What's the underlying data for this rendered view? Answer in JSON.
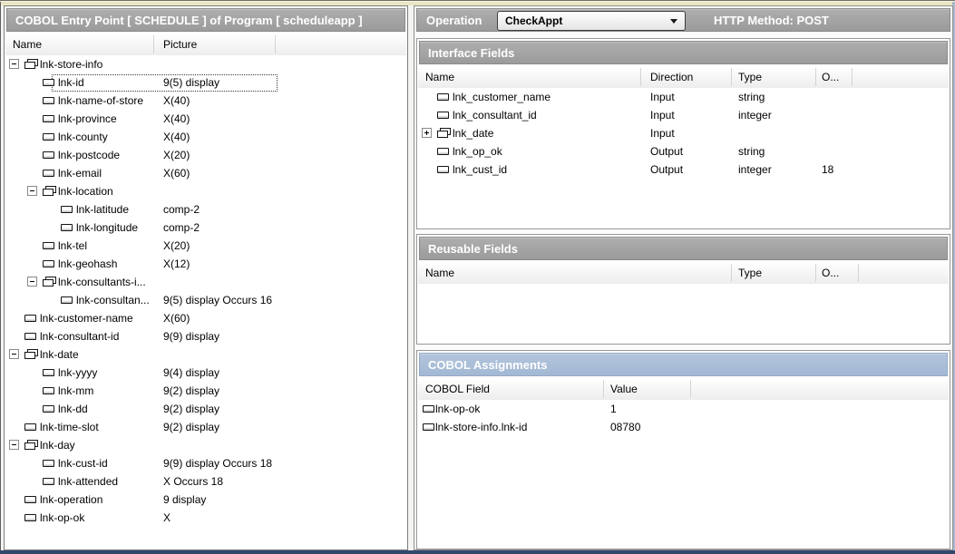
{
  "colors": {
    "bar_gray": "#a2a2a2",
    "bar_blue": "#a9bdd8",
    "top_strip": "#e9e6c3",
    "bottom_line": "#31496b"
  },
  "left_panel": {
    "title": "COBOL Entry Point [ SCHEDULE ] of Program [ scheduleapp ]",
    "columns": {
      "name": "Name",
      "picture": "Picture"
    },
    "rows": [
      {
        "name": "lnk-store-info",
        "picture": "",
        "level": 0,
        "kind": "group",
        "expander": "-"
      },
      {
        "name": "lnk-id",
        "picture": "9(5) display",
        "level": 1,
        "kind": "leaf",
        "selected": true
      },
      {
        "name": "lnk-name-of-store",
        "picture": "X(40)",
        "level": 1,
        "kind": "leaf"
      },
      {
        "name": "lnk-province",
        "picture": "X(40)",
        "level": 1,
        "kind": "leaf"
      },
      {
        "name": "lnk-county",
        "picture": "X(40)",
        "level": 1,
        "kind": "leaf"
      },
      {
        "name": "lnk-postcode",
        "picture": "X(20)",
        "level": 1,
        "kind": "leaf"
      },
      {
        "name": "lnk-email",
        "picture": "X(60)",
        "level": 1,
        "kind": "leaf"
      },
      {
        "name": "lnk-location",
        "picture": "",
        "level": 1,
        "kind": "group",
        "expander": "-"
      },
      {
        "name": "lnk-latitude",
        "picture": "comp-2",
        "level": 2,
        "kind": "leaf"
      },
      {
        "name": "lnk-longitude",
        "picture": "comp-2",
        "level": 2,
        "kind": "leaf"
      },
      {
        "name": "lnk-tel",
        "picture": "X(20)",
        "level": 1,
        "kind": "leaf"
      },
      {
        "name": "lnk-geohash",
        "picture": "X(12)",
        "level": 1,
        "kind": "leaf"
      },
      {
        "name": "lnk-consultants-i...",
        "picture": "",
        "level": 1,
        "kind": "group",
        "expander": "-"
      },
      {
        "name": "lnk-consultan...",
        "picture": "9(5) display Occurs 16",
        "level": 2,
        "kind": "leaf"
      },
      {
        "name": "lnk-customer-name",
        "picture": "X(60)",
        "level": 0,
        "kind": "leaf"
      },
      {
        "name": "lnk-consultant-id",
        "picture": "9(9) display",
        "level": 0,
        "kind": "leaf"
      },
      {
        "name": "lnk-date",
        "picture": "",
        "level": 0,
        "kind": "group",
        "expander": "-"
      },
      {
        "name": "lnk-yyyy",
        "picture": "9(4) display",
        "level": 1,
        "kind": "leaf"
      },
      {
        "name": "lnk-mm",
        "picture": "9(2) display",
        "level": 1,
        "kind": "leaf"
      },
      {
        "name": "lnk-dd",
        "picture": "9(2) display",
        "level": 1,
        "kind": "leaf"
      },
      {
        "name": "lnk-time-slot",
        "picture": "9(2) display",
        "level": 0,
        "kind": "leaf"
      },
      {
        "name": "lnk-day",
        "picture": "",
        "level": 0,
        "kind": "group",
        "expander": "-"
      },
      {
        "name": "lnk-cust-id",
        "picture": "9(9) display Occurs 18",
        "level": 1,
        "kind": "leaf"
      },
      {
        "name": "lnk-attended",
        "picture": "X  Occurs 18",
        "level": 1,
        "kind": "leaf"
      },
      {
        "name": "lnk-operation",
        "picture": "9 display",
        "level": 0,
        "kind": "leaf"
      },
      {
        "name": "lnk-op-ok",
        "picture": "X",
        "level": 0,
        "kind": "leaf"
      }
    ]
  },
  "right_panel": {
    "operation": {
      "label": "Operation",
      "value": "CheckAppt"
    },
    "http_method": "HTTP Method: POST",
    "interface_fields": {
      "title": "Interface Fields",
      "columns": {
        "name": "Name",
        "direction": "Direction",
        "type": "Type",
        "occurs": "O..."
      },
      "rows": [
        {
          "name": "lnk_customer_name",
          "direction": "Input",
          "type": "string",
          "occurs": "",
          "kind": "leaf"
        },
        {
          "name": "lnk_consultant_id",
          "direction": "Input",
          "type": "integer",
          "occurs": "",
          "kind": "leaf"
        },
        {
          "name": "lnk_date",
          "direction": "Input",
          "type": "",
          "occurs": "",
          "kind": "group",
          "expander": "+"
        },
        {
          "name": "lnk_op_ok",
          "direction": "Output",
          "type": "string",
          "occurs": "",
          "kind": "leaf"
        },
        {
          "name": "lnk_cust_id",
          "direction": "Output",
          "type": "integer",
          "occurs": "18",
          "kind": "leaf"
        }
      ]
    },
    "reusable_fields": {
      "title": "Reusable Fields",
      "columns": {
        "name": "Name",
        "type": "Type",
        "occurs": "O..."
      },
      "rows": []
    },
    "cobol_assignments": {
      "title": "COBOL Assignments",
      "columns": {
        "field": "COBOL Field",
        "value": "Value"
      },
      "rows": [
        {
          "field": "lnk-op-ok",
          "value": "1"
        },
        {
          "field": "lnk-store-info.lnk-id",
          "value": "08780"
        }
      ]
    }
  }
}
